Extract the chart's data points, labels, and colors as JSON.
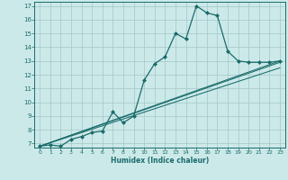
{
  "title": "",
  "xlabel": "Humidex (Indice chaleur)",
  "bg_color": "#cce9e9",
  "line_color": "#1a6b6b",
  "grid_color": "#aacccc",
  "xlim": [
    -0.5,
    23.5
  ],
  "ylim": [
    6.7,
    17.3
  ],
  "yticks": [
    7,
    8,
    9,
    10,
    11,
    12,
    13,
    14,
    15,
    16,
    17
  ],
  "xticks": [
    0,
    1,
    2,
    3,
    4,
    5,
    6,
    7,
    8,
    9,
    10,
    11,
    12,
    13,
    14,
    15,
    16,
    17,
    18,
    19,
    20,
    21,
    22,
    23
  ],
  "series": [
    [
      0,
      6.8
    ],
    [
      1,
      6.9
    ],
    [
      2,
      6.8
    ],
    [
      3,
      7.3
    ],
    [
      4,
      7.5
    ],
    [
      5,
      7.8
    ],
    [
      6,
      7.9
    ],
    [
      7,
      9.3
    ],
    [
      8,
      8.5
    ],
    [
      9,
      9.0
    ],
    [
      10,
      11.6
    ],
    [
      11,
      12.8
    ],
    [
      12,
      13.3
    ],
    [
      13,
      15.0
    ],
    [
      14,
      14.6
    ],
    [
      15,
      17.0
    ],
    [
      16,
      16.5
    ],
    [
      17,
      16.3
    ],
    [
      18,
      13.7
    ],
    [
      19,
      13.0
    ],
    [
      20,
      12.9
    ],
    [
      21,
      12.9
    ],
    [
      22,
      12.9
    ],
    [
      23,
      13.0
    ]
  ],
  "linear_series": [
    [
      [
        0,
        6.8
      ],
      [
        23,
        13.0
      ]
    ],
    [
      [
        0,
        6.8
      ],
      [
        23,
        12.9
      ]
    ],
    [
      [
        0,
        6.8
      ],
      [
        23,
        12.5
      ]
    ]
  ]
}
